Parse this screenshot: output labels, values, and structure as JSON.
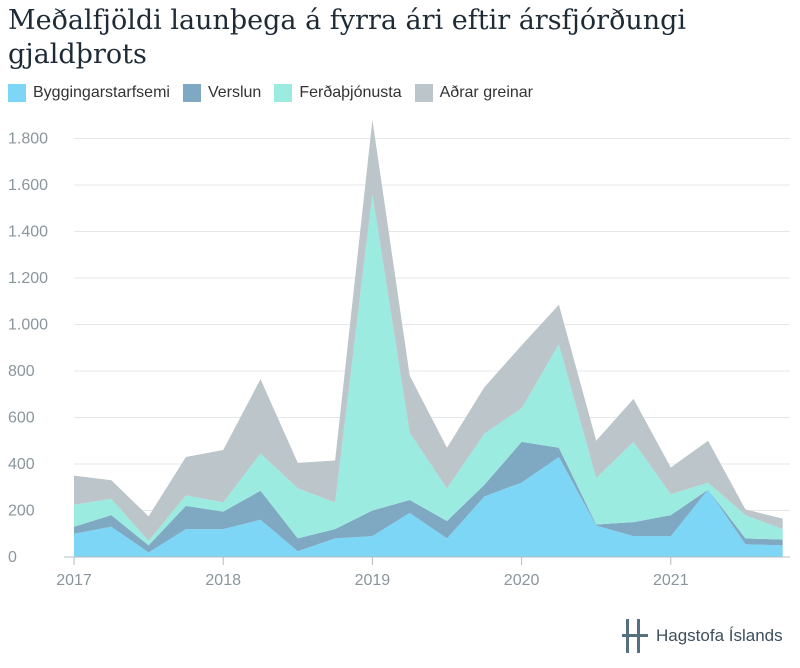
{
  "title": "Meðalfjöldi launþega á fyrra ári eftir ársfjórðungi gjaldþrots",
  "colors": {
    "Byggingarstarfsemi": "#7dd6f5",
    "Verslun": "#7fa8c2",
    "Ferðaþjónusta": "#9bebe0",
    "Aðrar greinar": "#bcc5c9"
  },
  "logo": {
    "text": "Hagstofa Íslands",
    "icon": "hagstofa-logo-icon"
  },
  "chart_data": {
    "type": "area",
    "stacked": true,
    "title": "Meðalfjöldi launþega á fyrra ári eftir ársfjórðungi gjaldþrots",
    "xlabel": "",
    "ylabel": "",
    "x": [
      "2017Q1",
      "2017Q2",
      "2017Q3",
      "2017Q4",
      "2018Q1",
      "2018Q2",
      "2018Q3",
      "2018Q4",
      "2019Q1",
      "2019Q2",
      "2019Q3",
      "2019Q4",
      "2020Q1",
      "2020Q2",
      "2020Q3",
      "2020Q4",
      "2021Q1",
      "2021Q2",
      "2021Q3",
      "2021Q4"
    ],
    "x_tick_labels": [
      "2017",
      "2018",
      "2019",
      "2020",
      "2021"
    ],
    "y_ticks": [
      0,
      200,
      400,
      600,
      800,
      1000,
      1200,
      1400,
      1600,
      1800
    ],
    "y_tick_labels": [
      "0",
      "200",
      "400",
      "600",
      "800",
      "1.000",
      "1.200",
      "1.400",
      "1.600",
      "1.800"
    ],
    "ylim": [
      0,
      1850
    ],
    "grid": true,
    "legend_position": "top-left",
    "series": [
      {
        "name": "Byggingarstarfsemi",
        "values": [
          100,
          130,
          20,
          120,
          120,
          160,
          25,
          80,
          90,
          190,
          80,
          260,
          320,
          430,
          135,
          90,
          90,
          290,
          55,
          50
        ]
      },
      {
        "name": "Verslun",
        "values": [
          30,
          50,
          30,
          100,
          75,
          125,
          55,
          40,
          110,
          55,
          75,
          50,
          175,
          40,
          5,
          60,
          90,
          0,
          25,
          25
        ]
      },
      {
        "name": "Ferðaþjónusta",
        "values": [
          95,
          70,
          20,
          45,
          40,
          160,
          215,
          115,
          1360,
          290,
          140,
          220,
          145,
          445,
          200,
          345,
          90,
          30,
          100,
          45
        ]
      },
      {
        "name": "Aðrar greinar",
        "values": [
          125,
          80,
          105,
          165,
          225,
          320,
          110,
          180,
          320,
          245,
          175,
          200,
          270,
          170,
          160,
          185,
          115,
          180,
          25,
          45
        ]
      }
    ]
  }
}
